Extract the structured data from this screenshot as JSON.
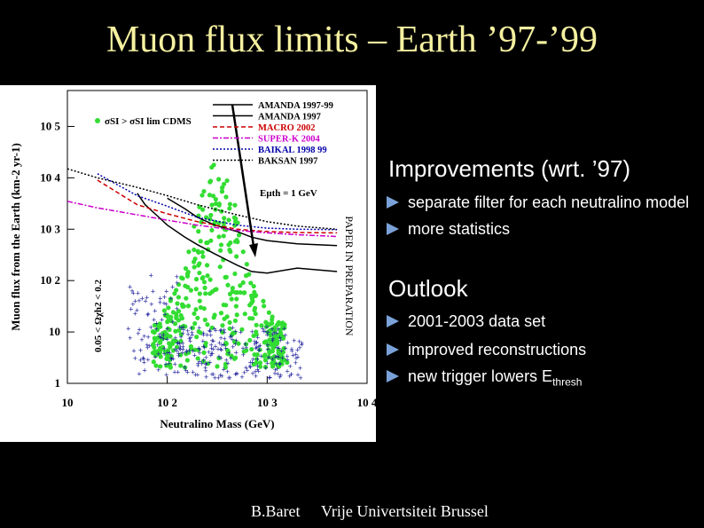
{
  "slide": {
    "title": "Muon flux limits – Earth ’97-’99",
    "footer_author": "B.Baret",
    "footer_institution": "Vrije Univertsiteit Brussel"
  },
  "right_panel": {
    "improvements_title": "Improvements (wrt. ’97)",
    "improvements_items": [
      "separate filter for each neutralino model",
      "more statistics"
    ],
    "outlook_title": "Outlook",
    "outlook_items": [
      "2001-2003 data set",
      "improved reconstructions"
    ],
    "outlook_last_prefix": "new trigger lowers E",
    "outlook_last_sub": "thresh",
    "bullet_color": "#7aa2d8"
  },
  "chart_data": {
    "type": "scatter",
    "xlabel": "Neutralino Mass (GeV)",
    "ylabel": "Muon flux from the Earth (km-2 yr-1)",
    "x_scale": "log",
    "y_scale": "log",
    "xlim": [
      10,
      10000
    ],
    "ylim": [
      1,
      500000
    ],
    "x_ticks": [
      "10",
      "10 2",
      "10 3",
      "10 4"
    ],
    "y_ticks": [
      "1",
      "10",
      "10 2",
      "10 3",
      "10 4",
      "10 5"
    ],
    "stamp": "PAPER IN PREPARATION",
    "left_note": "0.05 < Ωχh2 < 0.2",
    "green_note": "σSI > σSI lim CDMS",
    "threshold_note": "Eμth = 1 GeV",
    "legend": [
      {
        "name": "AMANDA 1997-99",
        "color": "#000000",
        "style": "solid"
      },
      {
        "name": "AMANDA 1997",
        "color": "#000000",
        "style": "solid"
      },
      {
        "name": "MACRO 2002",
        "color": "#cc0000",
        "style": "dashed"
      },
      {
        "name": "SUPER-K 2004",
        "color": "#cc00cc",
        "style": "dashdot"
      },
      {
        "name": "BAIKAL 1998 99",
        "color": "#0000aa",
        "style": "dotted"
      },
      {
        "name": "BAKSAN 1997",
        "color": "#000000",
        "style": "dotted"
      }
    ],
    "series": [
      {
        "name": "AMANDA 1997-99",
        "x": [
          50,
          60,
          80,
          100,
          150,
          200,
          300,
          500,
          700,
          1000,
          2000,
          5000
        ],
        "y": [
          5000,
          3000,
          1800,
          1200,
          700,
          500,
          330,
          200,
          150,
          140,
          175,
          150
        ]
      },
      {
        "name": "AMANDA 1997",
        "x": [
          100,
          150,
          200,
          300,
          500,
          700,
          1000,
          2000,
          5000
        ],
        "y": [
          4000,
          2500,
          1700,
          1200,
          900,
          700,
          600,
          520,
          480
        ]
      },
      {
        "name": "MACRO 2002",
        "x": [
          20,
          50,
          100,
          200,
          500,
          1000,
          2000,
          5000
        ],
        "y": [
          9000,
          3000,
          2000,
          1400,
          1000,
          900,
          860,
          850
        ]
      },
      {
        "name": "SUPER-K 2004",
        "x": [
          10,
          20,
          50,
          100,
          200,
          500,
          1000,
          2000,
          5000
        ],
        "y": [
          3500,
          2600,
          1900,
          1500,
          1200,
          950,
          850,
          780,
          720
        ]
      },
      {
        "name": "BAIKAL 1998 99",
        "x": [
          20,
          50,
          100,
          200,
          500,
          1000,
          2000,
          5000
        ],
        "y": [
          12000,
          4500,
          2800,
          1700,
          1200,
          1050,
          1000,
          980
        ]
      },
      {
        "name": "BAKSAN 1997",
        "x": [
          10,
          20,
          50,
          100,
          200,
          500,
          1000,
          2000,
          5000
        ],
        "y": [
          15000,
          10000,
          6500,
          4500,
          3000,
          1900,
          1400,
          1150,
          1000
        ]
      }
    ]
  }
}
